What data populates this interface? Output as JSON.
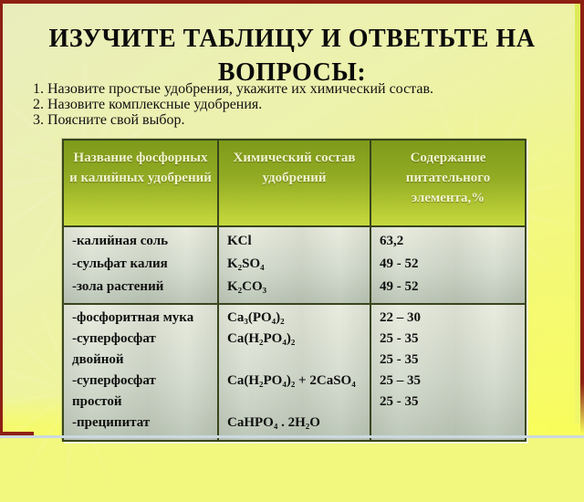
{
  "slide": {
    "title_line1": "ИЗУЧИТЕ ТАБЛИЦУ И ОТВЕТЬТЕ НА",
    "title_line2": "ВОПРОСЫ:",
    "questions": [
      "1. Назовите простые удобрения, укажите их химический состав.",
      "2. Назовите комплексные удобрения.",
      "3. Поясните свой выбор."
    ],
    "colors": {
      "frame_red": "#8d2013",
      "background_yellow": "#f2f77e",
      "header_green": "#93ac24",
      "header_text": "#f1f2cc",
      "cell_gray_green": "#d6ddd0"
    }
  },
  "table": {
    "headers": [
      "Название фосфорных и калийных удобрений",
      "Химический состав удобрений",
      "Содержание питательного элемента,%"
    ],
    "rows": [
      {
        "name": "-калийная соль\n-сульфат калия\n-зола растений",
        "composition": "KCl\nK₂SO₄\nK₂CO₃",
        "content": "63,2\n49 - 52\n49 - 52"
      },
      {
        "name": "-фосфоритная мука\n-суперфосфат\nдвойной\n-суперфосфат\nпростой\n-преципитат",
        "composition": "Ca₃(PO₄)₂\nCa(H₂PO₄)₂\n\nCa(H₂PO₄)₂ + 2CaSO₄\n\nCaHPO₄ . 2H₂O",
        "content": "22 – 30\n25 - 35\n25 - 35\n25 – 35\n25 - 35"
      }
    ]
  }
}
